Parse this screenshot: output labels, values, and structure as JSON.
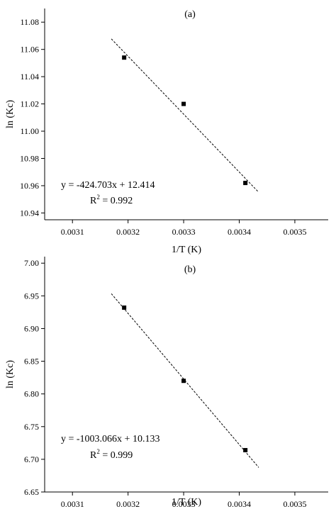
{
  "chart_data": [
    {
      "type": "scatter",
      "panel_label": "(a)",
      "xlabel": "1/T (K)",
      "ylabel": "ln (Kc)",
      "xlim": [
        0.00305,
        0.00356
      ],
      "ylim": [
        10.935,
        11.09
      ],
      "xticks": [
        0.0031,
        0.0032,
        0.0033,
        0.0034,
        0.0035
      ],
      "xtick_labels": [
        "0.0031",
        "0.0032",
        "0.0033",
        "0.0034",
        "0.0035"
      ],
      "yticks": [
        10.94,
        10.96,
        10.98,
        11.0,
        11.02,
        11.04,
        11.06,
        11.08
      ],
      "ytick_labels": [
        "10.94",
        "10.96",
        "10.98",
        "11.00",
        "11.02",
        "11.04",
        "11.06",
        "11.08"
      ],
      "points": [
        {
          "x": 0.003193,
          "y": 11.054
        },
        {
          "x": 0.0033,
          "y": 11.02
        },
        {
          "x": 0.003411,
          "y": 10.962
        }
      ],
      "fit": {
        "slope": -424.703,
        "intercept": 12.414,
        "x_range": [
          0.00317,
          0.003435
        ]
      },
      "equation_text": "y = -424.703x + 12.414",
      "r2_prefix": "R",
      "r2_sup": "2",
      "r2_value": " = 0.992"
    },
    {
      "type": "scatter",
      "panel_label": "(b)",
      "xlabel": "1/T (K)",
      "ylabel": "ln (Kc)",
      "xlim": [
        0.00305,
        0.00356
      ],
      "ylim": [
        6.65,
        7.01
      ],
      "xticks": [
        0.0031,
        0.0032,
        0.0033,
        0.0034,
        0.0035
      ],
      "xtick_labels": [
        "0.0031",
        "0.0032",
        "0.0033",
        "0.0034",
        "0.0035"
      ],
      "yticks": [
        6.65,
        6.7,
        6.75,
        6.8,
        6.85,
        6.9,
        6.95,
        7.0
      ],
      "ytick_labels": [
        "6.65",
        "6.70",
        "6.75",
        "6.80",
        "6.85",
        "6.90",
        "6.95",
        "7.00"
      ],
      "points": [
        {
          "x": 0.003193,
          "y": 6.932
        },
        {
          "x": 0.0033,
          "y": 6.82
        },
        {
          "x": 0.003411,
          "y": 6.714
        }
      ],
      "fit": {
        "slope": -1003.066,
        "intercept": 10.133,
        "x_range": [
          0.00317,
          0.003435
        ]
      },
      "equation_text": "y = -1003.066x + 10.133",
      "r2_prefix": "R",
      "r2_sup": "2",
      "r2_value": " = 0.999"
    }
  ]
}
